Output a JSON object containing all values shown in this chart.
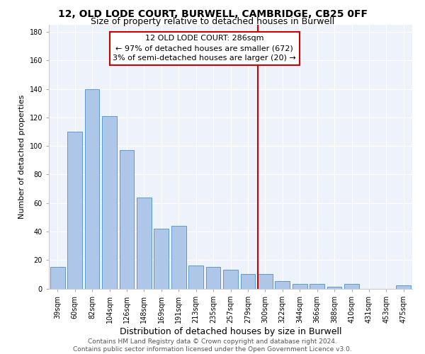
{
  "title1": "12, OLD LODE COURT, BURWELL, CAMBRIDGE, CB25 0FF",
  "title2": "Size of property relative to detached houses in Burwell",
  "xlabel": "Distribution of detached houses by size in Burwell",
  "ylabel": "Number of detached properties",
  "categories": [
    "39sqm",
    "60sqm",
    "82sqm",
    "104sqm",
    "126sqm",
    "148sqm",
    "169sqm",
    "191sqm",
    "213sqm",
    "235sqm",
    "257sqm",
    "279sqm",
    "300sqm",
    "322sqm",
    "344sqm",
    "366sqm",
    "388sqm",
    "410sqm",
    "431sqm",
    "453sqm",
    "475sqm"
  ],
  "values": [
    15,
    110,
    140,
    121,
    97,
    64,
    42,
    44,
    16,
    15,
    13,
    10,
    10,
    5,
    3,
    3,
    1,
    3,
    0,
    0,
    2
  ],
  "bar_color": "#aec6e8",
  "bar_edge_color": "#5b9bd5",
  "vline_color": "#cc0000",
  "annotation_text": "12 OLD LODE COURT: 286sqm\n← 97% of detached houses are smaller (672)\n3% of semi-detached houses are larger (20) →",
  "annotation_box_color": "#cc0000",
  "ylim": [
    0,
    185
  ],
  "yticks": [
    0,
    20,
    40,
    60,
    80,
    100,
    120,
    140,
    160,
    180
  ],
  "background_color": "#eef2fa",
  "footer_text": "Contains HM Land Registry data © Crown copyright and database right 2024.\nContains public sector information licensed under the Open Government Licence v3.0.",
  "title_fontsize": 10,
  "subtitle_fontsize": 9,
  "xlabel_fontsize": 9,
  "ylabel_fontsize": 8,
  "tick_fontsize": 7,
  "annotation_fontsize": 8,
  "footer_fontsize": 6.5
}
